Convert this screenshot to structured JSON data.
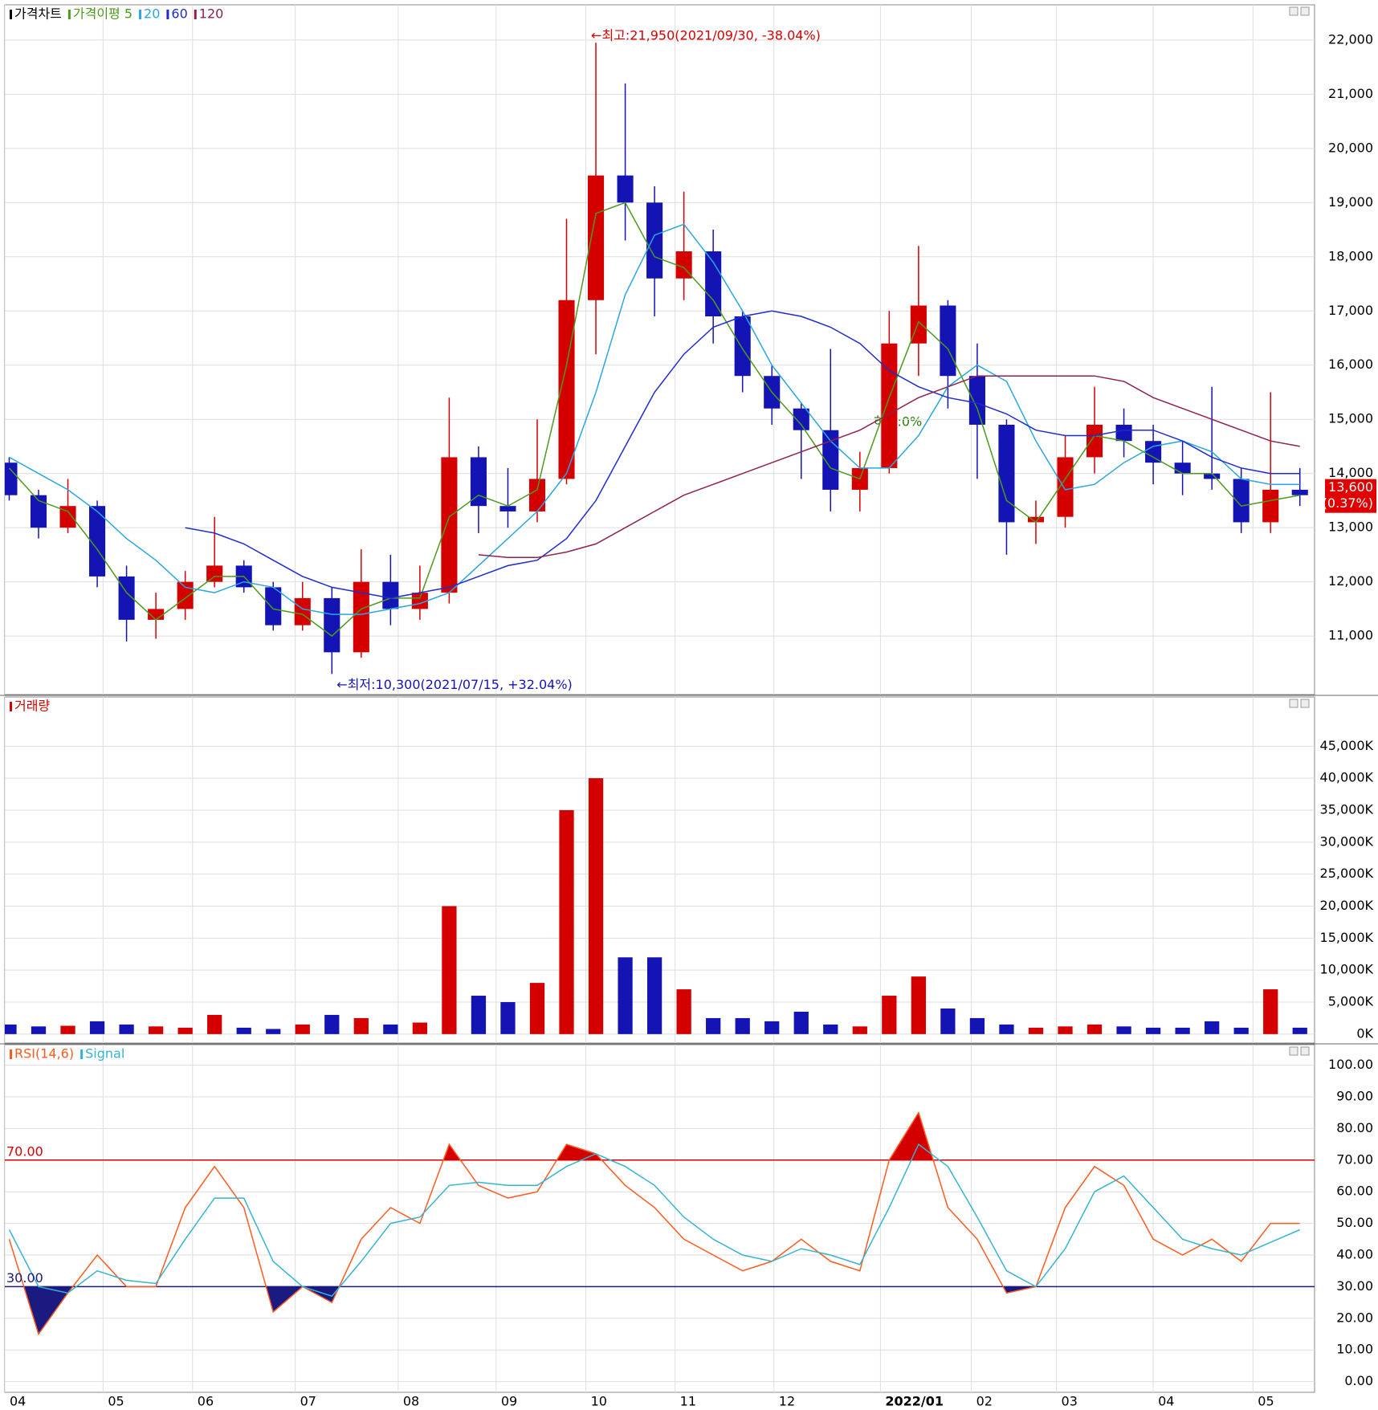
{
  "legend_title": "가격차트",
  "chart_data": [
    {
      "type": "candlestick",
      "candles": {
        "name": "가격차트",
        "up_color": "#d40000",
        "down_color": "#1414b4",
        "open": [
          14200,
          13600,
          13000,
          13400,
          12100,
          11300,
          11500,
          12000,
          12300,
          11900,
          11200,
          11700,
          10700,
          12000,
          11500,
          11800,
          14300,
          13400,
          13300,
          13900,
          17200,
          19500,
          19000,
          17600,
          18100,
          16900,
          15800,
          15200,
          14800,
          13700,
          14100,
          16400,
          17100,
          15800,
          14900,
          13100,
          13200,
          14300,
          14900,
          14600,
          14200,
          14000,
          13900,
          13100,
          13700
        ],
        "high": [
          14300,
          13700,
          13900,
          13500,
          12300,
          11800,
          12200,
          13200,
          12400,
          12000,
          12000,
          11900,
          12600,
          12500,
          12300,
          15400,
          14500,
          14100,
          15000,
          18700,
          21950,
          21200,
          19300,
          19200,
          18500,
          17000,
          16000,
          15300,
          16300,
          14400,
          17000,
          18200,
          17200,
          16400,
          15000,
          13500,
          14700,
          15600,
          15200,
          14900,
          14600,
          15600,
          14100,
          15500,
          14100
        ],
        "low": [
          13500,
          12800,
          12900,
          11900,
          10900,
          10950,
          11300,
          11900,
          11800,
          11100,
          11100,
          10300,
          10600,
          11200,
          11300,
          11600,
          12900,
          13000,
          13100,
          13800,
          16200,
          18300,
          16900,
          17200,
          16400,
          15500,
          14900,
          13900,
          13300,
          13300,
          14000,
          15800,
          15200,
          13900,
          12500,
          12700,
          13000,
          14000,
          14300,
          13800,
          13600,
          13700,
          12900,
          12900,
          13400
        ],
        "close": [
          13600,
          13000,
          13400,
          12100,
          11300,
          11500,
          12000,
          12300,
          11900,
          11200,
          11700,
          10700,
          12000,
          11500,
          11800,
          14300,
          13400,
          13300,
          13900,
          17200,
          19500,
          19000,
          17600,
          18100,
          16900,
          15800,
          15200,
          14800,
          13700,
          14100,
          16400,
          17100,
          15800,
          14900,
          13100,
          13200,
          14300,
          14900,
          14600,
          14200,
          14000,
          13900,
          13100,
          13700,
          13600
        ]
      },
      "series": [
        {
          "name": "가격이평 5",
          "color": "#4c9a1c",
          "values": [
            14100,
            13500,
            13300,
            12600,
            11800,
            11300,
            11700,
            12100,
            12100,
            11500,
            11400,
            11000,
            11500,
            11700,
            11700,
            13200,
            13600,
            13400,
            13700,
            16000,
            18800,
            19000,
            18000,
            17800,
            17200,
            16300,
            15500,
            14900,
            14100,
            13900,
            15400,
            16800,
            16300,
            15200,
            13500,
            13100,
            13900,
            14700,
            14600,
            14300,
            14000,
            14000,
            13400,
            13500,
            13600
          ]
        },
        {
          "name": "20",
          "color": "#2aa6e0",
          "values": [
            14300,
            14000,
            13700,
            13300,
            12800,
            12400,
            11900,
            11800,
            12000,
            11900,
            11500,
            11400,
            11400,
            11500,
            11600,
            11800,
            12300,
            12800,
            13300,
            14000,
            15500,
            17300,
            18400,
            18600,
            17900,
            17000,
            16000,
            15300,
            14600,
            14100,
            14100,
            14700,
            15600,
            16000,
            15700,
            14600,
            13700,
            13800,
            14200,
            14500,
            14600,
            14400,
            13900,
            13800,
            13800
          ]
        },
        {
          "name": "60",
          "color": "#1f2bd0",
          "values": [
            null,
            null,
            null,
            null,
            null,
            null,
            13000,
            12900,
            12700,
            12400,
            12100,
            11900,
            11800,
            11700,
            11800,
            11900,
            12100,
            12300,
            12400,
            12800,
            13500,
            14500,
            15500,
            16200,
            16700,
            16900,
            17000,
            16900,
            16700,
            16400,
            15900,
            15600,
            15400,
            15300,
            15100,
            14800,
            14700,
            14700,
            14800,
            14800,
            14600,
            14300,
            14100,
            14000,
            14000
          ]
        },
        {
          "name": "120",
          "color": "#8b2252",
          "values": [
            null,
            null,
            null,
            null,
            null,
            null,
            null,
            null,
            null,
            null,
            null,
            null,
            null,
            null,
            null,
            null,
            12500,
            12450,
            12450,
            12550,
            12700,
            13000,
            13300,
            13600,
            13800,
            14000,
            14200,
            14400,
            14600,
            14800,
            15100,
            15400,
            15600,
            15800,
            15800,
            15800,
            15800,
            15800,
            15700,
            15400,
            15200,
            15000,
            14800,
            14600,
            14500
          ]
        }
      ],
      "high_label": "←최고:21,950(2021/09/30, -38.04%)",
      "low_label": "←최저:10,300(2021/07/15, +32.04%)",
      "trend_label": "하락:0%",
      "last_price_label": "13,600",
      "last_change_label": "(0.37%)",
      "xlim": [
        -0.15,
        44.5
      ],
      "ylim": [
        9920,
        22650
      ],
      "yticks": [
        {
          "value": 11000,
          "label": "11,000"
        },
        {
          "value": 12000,
          "label": "12,000"
        },
        {
          "value": 13000,
          "label": "13,000"
        },
        {
          "value": 14000,
          "label": "14,000"
        },
        {
          "value": 15000,
          "label": "15,000"
        },
        {
          "value": 16000,
          "label": "16,000"
        },
        {
          "value": 17000,
          "label": "17,000"
        },
        {
          "value": 18000,
          "label": "18,000"
        },
        {
          "value": 19000,
          "label": "19,000"
        },
        {
          "value": 20000,
          "label": "20,000"
        },
        {
          "value": 21000,
          "label": "21,000"
        },
        {
          "value": 22000,
          "label": "22,000"
        }
      ],
      "grid": true
    },
    {
      "type": "bar",
      "series": [
        {
          "name": "거래량",
          "color": "#d40000",
          "values": [
            1500,
            1200,
            1300,
            2000,
            1500,
            1200,
            1000,
            3000,
            1000,
            800,
            1500,
            3000,
            2500,
            1500,
            1800,
            20000,
            6000,
            5000,
            8000,
            35000,
            40000,
            12000,
            12000,
            7000,
            2500,
            2500,
            2000,
            3500,
            1500,
            1200,
            6000,
            9000,
            4000,
            2500,
            1500,
            1000,
            1200,
            1500,
            1200,
            1000,
            1000,
            2000,
            1000,
            7000,
            1000
          ]
        }
      ],
      "xlim": [
        -0.15,
        44.5
      ],
      "ylim": [
        -1400,
        52700
      ],
      "yticks": [
        {
          "value": 0,
          "label": "0K"
        },
        {
          "value": 5000,
          "label": "5,000K"
        },
        {
          "value": 10000,
          "label": "10,000K"
        },
        {
          "value": 15000,
          "label": "15,000K"
        },
        {
          "value": 20000,
          "label": "20,000K"
        },
        {
          "value": 25000,
          "label": "25,000K"
        },
        {
          "value": 30000,
          "label": "30,000K"
        },
        {
          "value": 35000,
          "label": "35,000K"
        },
        {
          "value": 40000,
          "label": "40,000K"
        },
        {
          "value": 45000,
          "label": "45,000K"
        }
      ],
      "grid": true
    },
    {
      "type": "line",
      "series": [
        {
          "name": "RSI(14,6)",
          "color": "#ff5a1e",
          "values": [
            45,
            15,
            28,
            40,
            30,
            30,
            55,
            68,
            55,
            22,
            30,
            25,
            45,
            55,
            50,
            75,
            62,
            58,
            60,
            75,
            72,
            62,
            55,
            45,
            40,
            35,
            38,
            45,
            38,
            35,
            70,
            85,
            55,
            45,
            28,
            30,
            55,
            68,
            62,
            45,
            40,
            45,
            38,
            50,
            50
          ]
        },
        {
          "name": "Signal",
          "color": "#34b4d0",
          "values": [
            48,
            30,
            28,
            35,
            32,
            31,
            45,
            58,
            58,
            38,
            30,
            27,
            38,
            50,
            52,
            62,
            63,
            62,
            62,
            68,
            72,
            68,
            62,
            52,
            45,
            40,
            38,
            42,
            40,
            37,
            55,
            75,
            68,
            52,
            35,
            30,
            42,
            60,
            65,
            55,
            45,
            42,
            40,
            44,
            48
          ]
        }
      ],
      "levels": [
        {
          "value": 70,
          "label": "70.00",
          "color": "#d40000"
        },
        {
          "value": 30,
          "label": "30.00",
          "color": "#1a1a80"
        }
      ],
      "xlim": [
        -0.15,
        44.5
      ],
      "ylim": [
        -3.4,
        106.5
      ],
      "xticks": [
        {
          "value": -0.15,
          "label": "04"
        },
        {
          "value": 3.2,
          "label": "05"
        },
        {
          "value": 6.25,
          "label": "06"
        },
        {
          "value": 9.75,
          "label": "07"
        },
        {
          "value": 13.26,
          "label": "08"
        },
        {
          "value": 16.6,
          "label": "09"
        },
        {
          "value": 19.66,
          "label": "10"
        },
        {
          "value": 22.7,
          "label": "11"
        },
        {
          "value": 26.07,
          "label": "12"
        },
        {
          "value": 29.7,
          "label": "2022/01"
        },
        {
          "value": 32.8,
          "label": "02"
        },
        {
          "value": 35.7,
          "label": "03"
        },
        {
          "value": 39.0,
          "label": "04"
        },
        {
          "value": 42.4,
          "label": "05"
        }
      ],
      "yticks": [
        {
          "value": 0,
          "label": "0.00"
        },
        {
          "value": 10,
          "label": "10.00"
        },
        {
          "value": 20,
          "label": "20.00"
        },
        {
          "value": 30,
          "label": "30.00"
        },
        {
          "value": 40,
          "label": "40.00"
        },
        {
          "value": 50,
          "label": "50.00"
        },
        {
          "value": 60,
          "label": "60.00"
        },
        {
          "value": 70,
          "label": "70.00"
        },
        {
          "value": 80,
          "label": "80.00"
        },
        {
          "value": 90,
          "label": "90.00"
        },
        {
          "value": 100,
          "label": "100.00"
        }
      ],
      "grid": true
    }
  ]
}
